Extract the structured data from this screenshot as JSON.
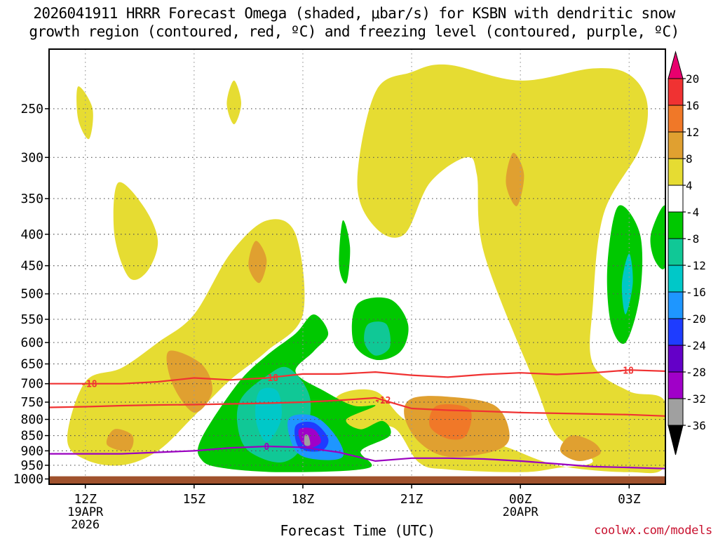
{
  "title_line1": "2026041911 HRRR Forecast Omega (shaded, μbar/s) for KSBN with dendritic snow",
  "title_line2": "growth region (contoured, red, ºC) and freezing level (contoured, purple, ºC)",
  "credit": "coolwx.com/models",
  "chart_data": {
    "type": "heatmap",
    "xlabel": "Forecast Time (UTC)",
    "ylabel": "",
    "x_ticks": [
      {
        "label": "12Z",
        "sub": [
          "19APR",
          "2026"
        ],
        "hour": 12
      },
      {
        "label": "15Z",
        "sub": [],
        "hour": 15
      },
      {
        "label": "18Z",
        "sub": [],
        "hour": 18
      },
      {
        "label": "21Z",
        "sub": [],
        "hour": 21
      },
      {
        "label": "00Z",
        "sub": [
          "20APR"
        ],
        "hour": 24
      },
      {
        "label": "03Z",
        "sub": [],
        "hour": 27
      }
    ],
    "xlim_hours": [
      11,
      28
    ],
    "y_ticks": [
      250,
      300,
      350,
      400,
      450,
      500,
      550,
      600,
      650,
      700,
      750,
      800,
      850,
      900,
      950,
      1000
    ],
    "ylim_hpa": [
      1020,
      200
    ],
    "y_scale": "log-pressure",
    "surface_hpa": 990,
    "surface_color": "#a0522d",
    "grid": true,
    "colorbar": {
      "ticks": [
        20,
        16,
        12,
        8,
        4,
        -4,
        -8,
        -12,
        -16,
        -20,
        -24,
        -28,
        -32,
        -36
      ],
      "bins": [
        {
          "from": 20,
          "to": 24,
          "color": "#e8006e"
        },
        {
          "from": 16,
          "to": 20,
          "color": "#f03232"
        },
        {
          "from": 12,
          "to": 16,
          "color": "#f07828"
        },
        {
          "from": 8,
          "to": 12,
          "color": "#e0a030"
        },
        {
          "from": 4,
          "to": 8,
          "color": "#e6dc32"
        },
        {
          "from": -4,
          "to": 4,
          "color": "#ffffff"
        },
        {
          "from": -8,
          "to": -4,
          "color": "#00c800"
        },
        {
          "from": -12,
          "to": -8,
          "color": "#10c896"
        },
        {
          "from": -16,
          "to": -12,
          "color": "#00c8c8"
        },
        {
          "from": -20,
          "to": -16,
          "color": "#1e96ff"
        },
        {
          "from": -24,
          "to": -20,
          "color": "#1e3cff"
        },
        {
          "from": -28,
          "to": -24,
          "color": "#6400c8"
        },
        {
          "from": -32,
          "to": -28,
          "color": "#a000c8"
        },
        {
          "from": -36,
          "to": -32,
          "color": "#a0a0a0"
        }
      ],
      "over_color": "#e8006e",
      "under_color": "#000000"
    },
    "regions": [
      {
        "value": 6,
        "hours": [
          [
            12,
            695
          ],
          [
            13,
            660
          ],
          [
            14,
            600
          ],
          [
            15,
            540
          ],
          [
            16,
            430
          ],
          [
            17,
            380
          ],
          [
            17.8,
            400
          ],
          [
            18,
            540
          ],
          [
            17,
            620
          ],
          [
            16,
            690
          ],
          [
            15,
            790
          ],
          [
            14,
            900
          ],
          [
            13,
            950
          ],
          [
            12,
            930
          ],
          [
            11.5,
            860
          ]
        ]
      },
      {
        "value": 6,
        "hours": [
          [
            12.9,
            330
          ],
          [
            13.6,
            360
          ],
          [
            14,
            410
          ],
          [
            13.7,
            460
          ],
          [
            13.2,
            470
          ],
          [
            12.8,
            400
          ]
        ]
      },
      {
        "value": 6,
        "hours": [
          [
            11.8,
            230
          ],
          [
            12.2,
            250
          ],
          [
            12.1,
            280
          ],
          [
            11.8,
            260
          ]
        ]
      },
      {
        "value": 6,
        "hours": [
          [
            16.1,
            225
          ],
          [
            16.3,
            245
          ],
          [
            16.1,
            265
          ],
          [
            15.9,
            245
          ]
        ]
      },
      {
        "value": 6,
        "hours": [
          [
            20,
            235
          ],
          [
            21,
            218
          ],
          [
            22,
            212
          ],
          [
            24,
            225
          ],
          [
            26,
            215
          ],
          [
            27,
            220
          ],
          [
            27.5,
            245
          ],
          [
            27.3,
            290
          ],
          [
            26.3,
            370
          ],
          [
            26,
            520
          ],
          [
            26,
            650
          ],
          [
            27,
            720
          ],
          [
            28,
            750
          ],
          [
            28,
            950
          ],
          [
            27,
            975
          ],
          [
            25,
            950
          ],
          [
            23.4,
            880
          ],
          [
            22,
            860
          ],
          [
            20.8,
            800
          ],
          [
            20,
            720
          ],
          [
            19,
            730
          ],
          [
            18.8,
            800
          ],
          [
            19.5,
            830
          ],
          [
            20.5,
            825
          ],
          [
            21.2,
            940
          ],
          [
            22,
            965
          ],
          [
            24,
            975
          ],
          [
            25,
            960
          ],
          [
            26,
            935
          ],
          [
            25,
            850
          ],
          [
            24.4,
            700
          ],
          [
            23,
            430
          ],
          [
            22.8,
            320
          ],
          [
            22.5,
            300
          ],
          [
            21.5,
            330
          ],
          [
            20.8,
            400
          ],
          [
            20,
            390
          ],
          [
            19.5,
            330
          ]
        ]
      },
      {
        "value": 10,
        "hours": [
          [
            14.3,
            620
          ],
          [
            15.2,
            650
          ],
          [
            15.5,
            720
          ],
          [
            15,
            780
          ],
          [
            14.4,
            700
          ]
        ]
      },
      {
        "value": 10,
        "hours": [
          [
            16.7,
            410
          ],
          [
            17,
            440
          ],
          [
            16.8,
            480
          ],
          [
            16.5,
            450
          ]
        ]
      },
      {
        "value": 10,
        "hours": [
          [
            12.8,
            830
          ],
          [
            13.3,
            850
          ],
          [
            13.2,
            900
          ],
          [
            12.6,
            880
          ]
        ]
      },
      {
        "value": 10,
        "hours": [
          [
            21,
            740
          ],
          [
            22,
            735
          ],
          [
            23.3,
            760
          ],
          [
            23.7,
            850
          ],
          [
            23.3,
            900
          ],
          [
            22,
            920
          ],
          [
            21.2,
            870
          ],
          [
            20.8,
            790
          ]
        ]
      },
      {
        "value": 10,
        "hours": [
          [
            23.8,
            295
          ],
          [
            24.1,
            320
          ],
          [
            23.9,
            360
          ],
          [
            23.6,
            330
          ]
        ]
      },
      {
        "value": 10,
        "hours": [
          [
            25.4,
            850
          ],
          [
            26,
            870
          ],
          [
            26.2,
            910
          ],
          [
            25.6,
            935
          ],
          [
            25.1,
            900
          ]
        ]
      },
      {
        "value": 14,
        "hours": [
          [
            21.7,
            760
          ],
          [
            22.6,
            770
          ],
          [
            22.5,
            850
          ],
          [
            22,
            860
          ],
          [
            21.5,
            820
          ]
        ]
      },
      {
        "value": -6,
        "hours": [
          [
            15.2,
            860
          ],
          [
            16.2,
            700
          ],
          [
            17,
            630
          ],
          [
            17.8,
            580
          ],
          [
            18.3,
            540
          ],
          [
            18.7,
            580
          ],
          [
            18.3,
            620
          ],
          [
            17.8,
            670
          ],
          [
            18.6,
            720
          ],
          [
            19.4,
            760
          ],
          [
            20,
            760
          ],
          [
            19.2,
            800
          ],
          [
            19.6,
            830
          ],
          [
            20.2,
            805
          ],
          [
            20.4,
            850
          ],
          [
            19.6,
            900
          ],
          [
            19.8,
            960
          ],
          [
            17.5,
            975
          ],
          [
            15.8,
            960
          ],
          [
            15.2,
            930
          ]
        ]
      },
      {
        "value": -6,
        "hours": [
          [
            19.5,
            520
          ],
          [
            20.4,
            510
          ],
          [
            20.9,
            560
          ],
          [
            20.7,
            620
          ],
          [
            20,
            640
          ],
          [
            19.4,
            600
          ]
        ]
      },
      {
        "value": -6,
        "hours": [
          [
            19.1,
            380
          ],
          [
            19.3,
            420
          ],
          [
            19.2,
            480
          ],
          [
            19,
            450
          ]
        ]
      },
      {
        "value": -6,
        "hours": [
          [
            26.7,
            360
          ],
          [
            27.3,
            400
          ],
          [
            27.3,
            500
          ],
          [
            26.9,
            600
          ],
          [
            26.5,
            560
          ],
          [
            26.4,
            450
          ]
        ]
      },
      {
        "value": -6,
        "hours": [
          [
            28,
            360
          ],
          [
            28,
            450
          ],
          [
            27.7,
            440
          ],
          [
            27.6,
            400
          ]
        ]
      },
      {
        "value": -10,
        "hours": [
          [
            16.3,
            740
          ],
          [
            17,
            680
          ],
          [
            17.6,
            660
          ],
          [
            18.2,
            740
          ],
          [
            18,
            880
          ],
          [
            17.4,
            940
          ],
          [
            16.5,
            900
          ],
          [
            16.2,
            820
          ]
        ]
      },
      {
        "value": -10,
        "hours": [
          [
            19.8,
            560
          ],
          [
            20.3,
            560
          ],
          [
            20.4,
            610
          ],
          [
            20,
            630
          ],
          [
            19.7,
            600
          ]
        ]
      },
      {
        "value": -14,
        "hours": [
          [
            16.8,
            720
          ],
          [
            17.3,
            720
          ],
          [
            17.4,
            800
          ],
          [
            17,
            870
          ],
          [
            16.7,
            800
          ]
        ]
      },
      {
        "value": -14,
        "hours": [
          [
            27,
            430
          ],
          [
            27.1,
            480
          ],
          [
            26.9,
            540
          ],
          [
            26.8,
            480
          ]
        ]
      },
      {
        "value": -18,
        "hours": [
          [
            17.6,
            800
          ],
          [
            18.3,
            790
          ],
          [
            18.9,
            850
          ],
          [
            19.1,
            920
          ],
          [
            18.4,
            930
          ],
          [
            17.8,
            900
          ]
        ]
      },
      {
        "value": -22,
        "hours": [
          [
            17.8,
            820
          ],
          [
            18.3,
            810
          ],
          [
            18.7,
            860
          ],
          [
            18.5,
            900
          ],
          [
            17.9,
            890
          ]
        ]
      },
      {
        "value": -30,
        "hours": [
          [
            17.9,
            830
          ],
          [
            18.3,
            830
          ],
          [
            18.5,
            870
          ],
          [
            18.2,
            890
          ],
          [
            17.95,
            870
          ]
        ]
      },
      {
        "value": -34,
        "hours": [
          [
            18.05,
            850
          ],
          [
            18.15,
            850
          ],
          [
            18.2,
            880
          ],
          [
            18.05,
            880
          ]
        ]
      }
    ],
    "contours": [
      {
        "label": "-18",
        "color": "#f03232",
        "label_hours": [
          12.1,
          17.1,
          26.9
        ],
        "hours": [
          [
            11,
            700
          ],
          [
            12,
            700
          ],
          [
            13,
            700
          ],
          [
            14,
            695
          ],
          [
            15,
            685
          ],
          [
            16,
            690
          ],
          [
            17,
            685
          ],
          [
            18,
            675
          ],
          [
            19,
            675
          ],
          [
            20,
            670
          ],
          [
            21,
            678
          ],
          [
            22,
            683
          ],
          [
            23,
            676
          ],
          [
            24,
            672
          ],
          [
            25,
            676
          ],
          [
            26,
            672
          ],
          [
            27,
            665
          ],
          [
            28,
            668
          ]
        ]
      },
      {
        "label": "-12",
        "color": "#f03232",
        "label_hours": [
          20.2
        ],
        "hours": [
          [
            11,
            765
          ],
          [
            12,
            763
          ],
          [
            13,
            760
          ],
          [
            14,
            758
          ],
          [
            15,
            757
          ],
          [
            16,
            755
          ],
          [
            17,
            753
          ],
          [
            18,
            750
          ],
          [
            19,
            745
          ],
          [
            20,
            738
          ],
          [
            21,
            768
          ],
          [
            22,
            773
          ],
          [
            23,
            776
          ],
          [
            24,
            780
          ],
          [
            25,
            782
          ],
          [
            26,
            784
          ],
          [
            27,
            786
          ],
          [
            28,
            790
          ]
        ]
      },
      {
        "label": "0",
        "color": "#9a00c0",
        "label_hours": [
          17
        ],
        "hours": [
          [
            11,
            910
          ],
          [
            12,
            910
          ],
          [
            13,
            910
          ],
          [
            14,
            905
          ],
          [
            15,
            900
          ],
          [
            16,
            890
          ],
          [
            17,
            885
          ],
          [
            18,
            888
          ],
          [
            19,
            905
          ],
          [
            20,
            935
          ],
          [
            21,
            925
          ],
          [
            22,
            925
          ],
          [
            23,
            928
          ],
          [
            24,
            935
          ],
          [
            25,
            945
          ],
          [
            26,
            955
          ],
          [
            27,
            958
          ],
          [
            28,
            962
          ]
        ]
      }
    ]
  }
}
